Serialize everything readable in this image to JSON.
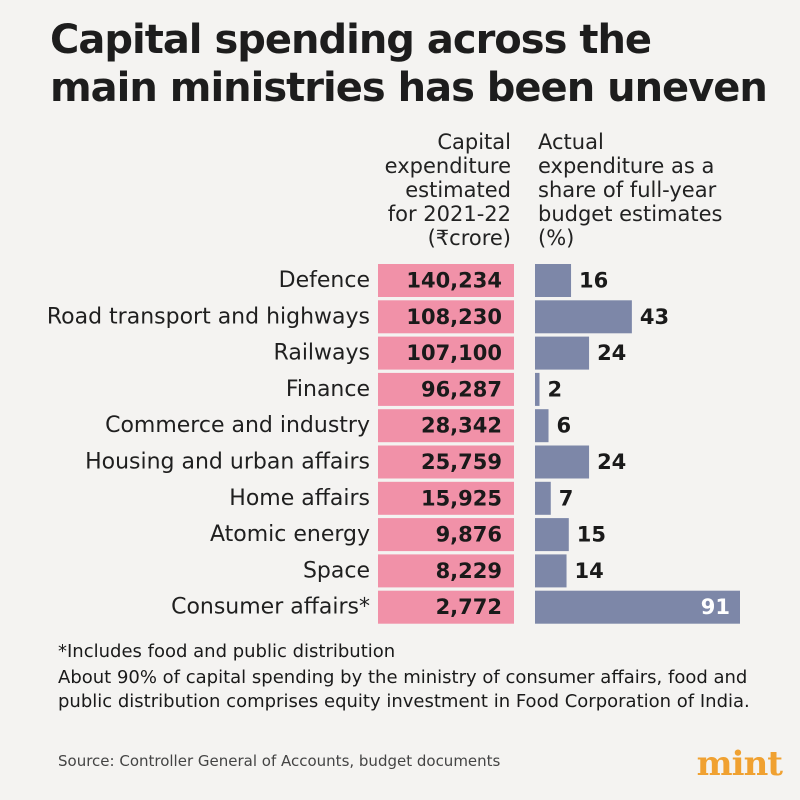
{
  "title": "Capital spending across the main ministries has been uneven",
  "colors": {
    "capital_bar": "#f191a8",
    "share_bar": "#7d87a8",
    "logo": "#f0a131"
  },
  "chart_data": {
    "type": "bar",
    "categories": [
      "Defence",
      "Road transport and highways",
      "Railways",
      "Finance",
      "Commerce and industry",
      "Housing and urban affairs",
      "Home affairs",
      "Atomic energy",
      "Space",
      "Consumer affairs*"
    ],
    "columns": [
      {
        "header": "Capital\nexpenditure\nestimated\nfor 2021-22\n(₹crore)",
        "values": [
          140234,
          108230,
          107100,
          96287,
          28342,
          25759,
          15925,
          9876,
          8229,
          2772
        ],
        "labels": [
          "140,234",
          "108,230",
          "107,100",
          "96,287",
          "28,342",
          "25,759",
          "15,925",
          "9,876",
          "8,229",
          "2,772"
        ]
      },
      {
        "header": "Actual\nexpenditure as a\nshare of full-year\nbudget estimates\n(%)",
        "values": [
          16,
          43,
          24,
          2,
          6,
          24,
          7,
          15,
          14,
          91
        ],
        "labels": [
          "16",
          "43",
          "24",
          "2",
          "6",
          "24",
          "7",
          "15",
          "14",
          "91"
        ]
      }
    ],
    "xlim": [
      0,
      91
    ]
  },
  "footnotes": [
    "*Includes food and public distribution",
    "About 90% of capital spending by the ministry of consumer affairs, food and public distribution comprises equity investment in Food Corporation of India."
  ],
  "source": "Source: Controller General of Accounts, budget documents",
  "logo_text": "mint"
}
